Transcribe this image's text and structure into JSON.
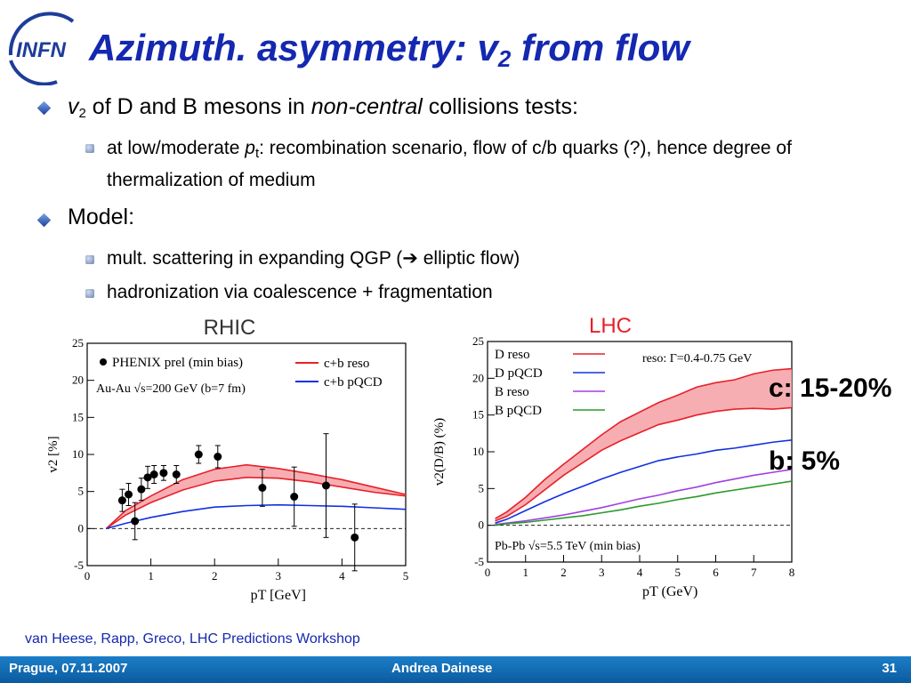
{
  "slide": {
    "title_main": "Azimuth. asymmetry: v",
    "title_sub": "2",
    "title_end": " from flow",
    "logo_text": "INFN",
    "bullets": [
      {
        "pre": "v",
        "sub": "2",
        "mid": " of D and B mesons in ",
        "em": "non-central",
        "post": " collisions tests:"
      },
      {
        "text": "Model:"
      }
    ],
    "sub_bullets": [
      {
        "pre": "at low/moderate ",
        "em": "p",
        "sub": "t",
        "post": ": recombination scenario, flow of c/b quarks (?), hence degree of thermalization of medium"
      },
      {
        "pre": "mult. scattering in expanding QGP (",
        "arrow": "➔",
        "post": " elliptic flow)"
      },
      {
        "text": "hadronization via coalescence + fragmentation"
      }
    ],
    "labels": {
      "c": "c: 15-20%",
      "b": "b: 5%"
    },
    "reference": "van Heese, Rapp, Greco, LHC Predictions Workshop",
    "footer": {
      "left": "Prague, 07.11.2007",
      "center": "Andrea Dainese",
      "right": "31"
    }
  },
  "chart_data": [
    {
      "type": "line",
      "title": "RHIC",
      "xlabel": "p_T [GeV]",
      "ylabel": "v_2 [%]",
      "xlim": [
        0,
        5
      ],
      "ylim": [
        -5,
        25
      ],
      "xticks": [
        "0",
        "1",
        "2",
        "3",
        "4",
        "5"
      ],
      "yticks": [
        "-5",
        "0",
        "5",
        "10",
        "15",
        "20",
        "25"
      ],
      "annotation": "Au-Au √s=200 GeV (b=7 fm)",
      "legend": [
        "PHENIX prel (min bias)",
        "c+b reso",
        "c+b pQCD"
      ],
      "colors": {
        "reso": "#e8202a",
        "band": "#f4a0a4",
        "pqcd": "#1030e0"
      },
      "points": {
        "name": "PHENIX prel (min bias)",
        "x": [
          0.55,
          0.65,
          0.75,
          0.85,
          0.95,
          1.05,
          1.2,
          1.4,
          1.75,
          2.05,
          2.75,
          3.25,
          3.75,
          4.2
        ],
        "y": [
          3.8,
          4.6,
          1.0,
          5.3,
          6.9,
          7.3,
          7.5,
          7.3,
          10.0,
          9.7,
          5.5,
          4.3,
          5.8,
          -1.2
        ],
        "err": [
          1.5,
          1.5,
          2.5,
          1.5,
          1.5,
          1.2,
          1.0,
          1.2,
          1.2,
          1.5,
          2.5,
          4.0,
          7.0,
          4.5
        ]
      },
      "series": [
        {
          "name": "c+b reso",
          "band": true,
          "x": [
            0.3,
            0.6,
            1.0,
            1.5,
            2.0,
            2.5,
            3.0,
            3.5,
            4.0,
            4.5,
            5.0
          ],
          "lower": [
            0,
            1.8,
            3.5,
            5.2,
            6.4,
            6.9,
            6.8,
            6.3,
            5.6,
            4.9,
            4.4
          ],
          "upper": [
            0,
            2.4,
            4.4,
            6.6,
            8.0,
            8.6,
            8.1,
            7.4,
            6.6,
            5.6,
            4.6
          ]
        },
        {
          "name": "c+b pQCD",
          "x": [
            0.3,
            0.6,
            1.0,
            1.5,
            2.0,
            2.5,
            3.0,
            3.5,
            4.0,
            4.5,
            5.0
          ],
          "values": [
            0,
            0.7,
            1.5,
            2.3,
            2.9,
            3.1,
            3.2,
            3.1,
            3.0,
            2.8,
            2.6
          ]
        }
      ]
    },
    {
      "type": "line",
      "title": "LHC",
      "xlabel": "p_T (GeV)",
      "ylabel": "v_2(D/B) (%)",
      "xlim": [
        0,
        8
      ],
      "ylim": [
        -5,
        25
      ],
      "xticks": [
        "0",
        "1",
        "2",
        "3",
        "4",
        "5",
        "6",
        "7",
        "8"
      ],
      "yticks": [
        "-5",
        "0",
        "5",
        "10",
        "15",
        "20",
        "25"
      ],
      "annotations": [
        "reso: Γ=0.4-0.75 GeV",
        "Pb-Pb √s=5.5 TeV (min bias)"
      ],
      "legend": [
        "D reso",
        "D pQCD",
        "B reso",
        "B pQCD"
      ],
      "colors": {
        "D reso": "#e8202a",
        "band": "#f4a0a4",
        "D pQCD": "#1030e0",
        "B reso": "#a040e0",
        "B pQCD": "#2a9a2a"
      },
      "series": [
        {
          "name": "D reso",
          "band": true,
          "x": [
            0.2,
            0.5,
            1.0,
            1.5,
            2.0,
            2.5,
            3.0,
            3.5,
            4.0,
            4.5,
            5.0,
            5.5,
            6.0,
            6.5,
            7.0,
            7.5,
            8.0
          ],
          "lower": [
            0.6,
            1.2,
            2.8,
            4.8,
            6.8,
            8.5,
            10.2,
            11.5,
            12.6,
            13.7,
            14.3,
            15.0,
            15.5,
            15.8,
            15.9,
            15.8,
            16.0
          ],
          "upper": [
            0.9,
            1.8,
            3.8,
            6.2,
            8.3,
            10.3,
            12.3,
            14.1,
            15.4,
            16.7,
            17.7,
            18.8,
            19.4,
            19.8,
            20.6,
            21.1,
            21.3
          ]
        },
        {
          "name": "D pQCD",
          "x": [
            0.2,
            0.5,
            1.0,
            1.5,
            2.0,
            2.5,
            3.0,
            3.5,
            4.0,
            4.5,
            5.0,
            5.5,
            6.0,
            6.5,
            7.0,
            7.5,
            8.0
          ],
          "values": [
            0.3,
            0.8,
            2.0,
            3.2,
            4.3,
            5.3,
            6.3,
            7.2,
            8.0,
            8.8,
            9.3,
            9.7,
            10.2,
            10.5,
            10.9,
            11.3,
            11.6
          ]
        },
        {
          "name": "B reso",
          "x": [
            0.2,
            0.5,
            1.0,
            1.5,
            2.0,
            2.5,
            3.0,
            3.5,
            4.0,
            4.5,
            5.0,
            5.5,
            6.0,
            6.5,
            7.0,
            7.5,
            8.0
          ],
          "values": [
            0.1,
            0.3,
            0.6,
            1.0,
            1.4,
            1.9,
            2.4,
            3.0,
            3.6,
            4.1,
            4.7,
            5.2,
            5.8,
            6.3,
            6.8,
            7.2,
            7.6
          ]
        },
        {
          "name": "B pQCD",
          "x": [
            0.2,
            0.5,
            1.0,
            1.5,
            2.0,
            2.5,
            3.0,
            3.5,
            4.0,
            4.5,
            5.0,
            5.5,
            6.0,
            6.5,
            7.0,
            7.5,
            8.0
          ],
          "values": [
            0.0,
            0.2,
            0.4,
            0.7,
            1.0,
            1.3,
            1.7,
            2.1,
            2.6,
            3.0,
            3.5,
            3.9,
            4.4,
            4.8,
            5.2,
            5.6,
            6.0
          ]
        }
      ]
    }
  ]
}
